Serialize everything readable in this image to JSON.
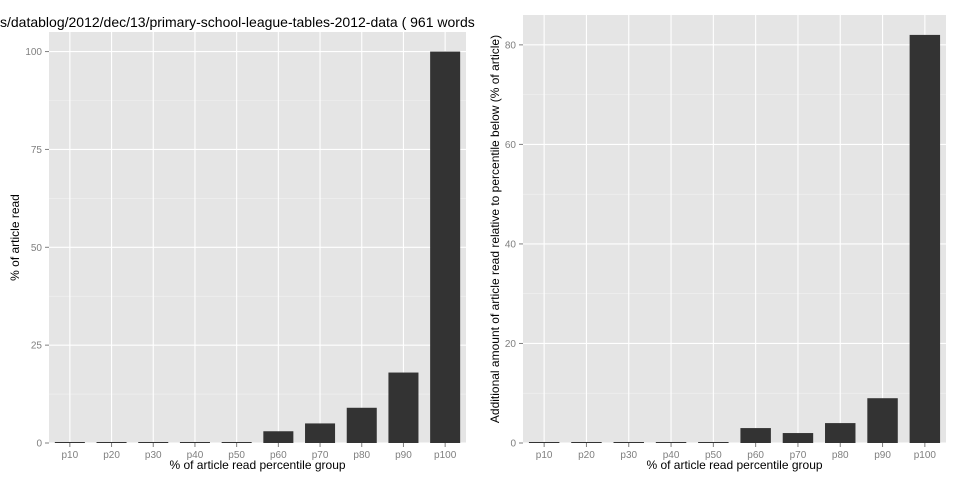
{
  "chart_data": [
    {
      "type": "bar",
      "title": "s/datablog/2012/dec/13/primary-school-league-tables-2012-data ( 961 words",
      "xlabel": "% of article read percentile group",
      "ylabel": "% of article read",
      "categories": [
        "p10",
        "p20",
        "p30",
        "p40",
        "p50",
        "p60",
        "p70",
        "p80",
        "p90",
        "p100"
      ],
      "values": [
        0,
        0,
        0,
        0,
        0,
        3,
        5,
        9,
        18,
        100
      ],
      "ylim": [
        0,
        105
      ],
      "yticks": [
        0,
        25,
        50,
        75,
        100
      ],
      "grid": true
    },
    {
      "type": "bar",
      "title": "",
      "xlabel": "% of article read percentile group",
      "ylabel": "Additional amount of article read relative to percentile below (% of article)",
      "categories": [
        "p10",
        "p20",
        "p30",
        "p40",
        "p50",
        "p60",
        "p70",
        "p80",
        "p90",
        "p100"
      ],
      "values": [
        0,
        0,
        0,
        0,
        0,
        3,
        2,
        4,
        9,
        82
      ],
      "ylim": [
        0,
        86
      ],
      "yticks": [
        0,
        20,
        40,
        60,
        80
      ],
      "grid": true
    }
  ]
}
